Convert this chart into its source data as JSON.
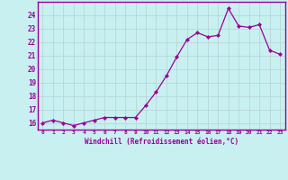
{
  "x": [
    0,
    1,
    2,
    3,
    4,
    5,
    6,
    7,
    8,
    9,
    10,
    11,
    12,
    13,
    14,
    15,
    16,
    17,
    18,
    19,
    20,
    21,
    22,
    23
  ],
  "y": [
    16.0,
    16.2,
    16.0,
    15.8,
    16.0,
    16.2,
    16.4,
    16.4,
    16.4,
    16.4,
    17.3,
    18.3,
    19.5,
    20.9,
    22.2,
    22.7,
    22.4,
    22.5,
    24.5,
    23.2,
    23.1,
    23.3,
    21.4,
    21.1
  ],
  "line_color": "#990099",
  "marker_color": "#990099",
  "bg_color": "#c8f0f0",
  "grid_color": "#b8dada",
  "xlabel": "Windchill (Refroidissement éolien,°C)",
  "ylim_min": 15.5,
  "ylim_max": 25.0,
  "xlim_min": -0.5,
  "xlim_max": 23.5,
  "yticks": [
    16,
    17,
    18,
    19,
    20,
    21,
    22,
    23,
    24
  ],
  "xticks": [
    0,
    1,
    2,
    3,
    4,
    5,
    6,
    7,
    8,
    9,
    10,
    11,
    12,
    13,
    14,
    15,
    16,
    17,
    18,
    19,
    20,
    21,
    22,
    23
  ],
  "font_color": "#990099",
  "axis_color": "#990099",
  "tick_color": "#990099",
  "border_color": "#990099"
}
